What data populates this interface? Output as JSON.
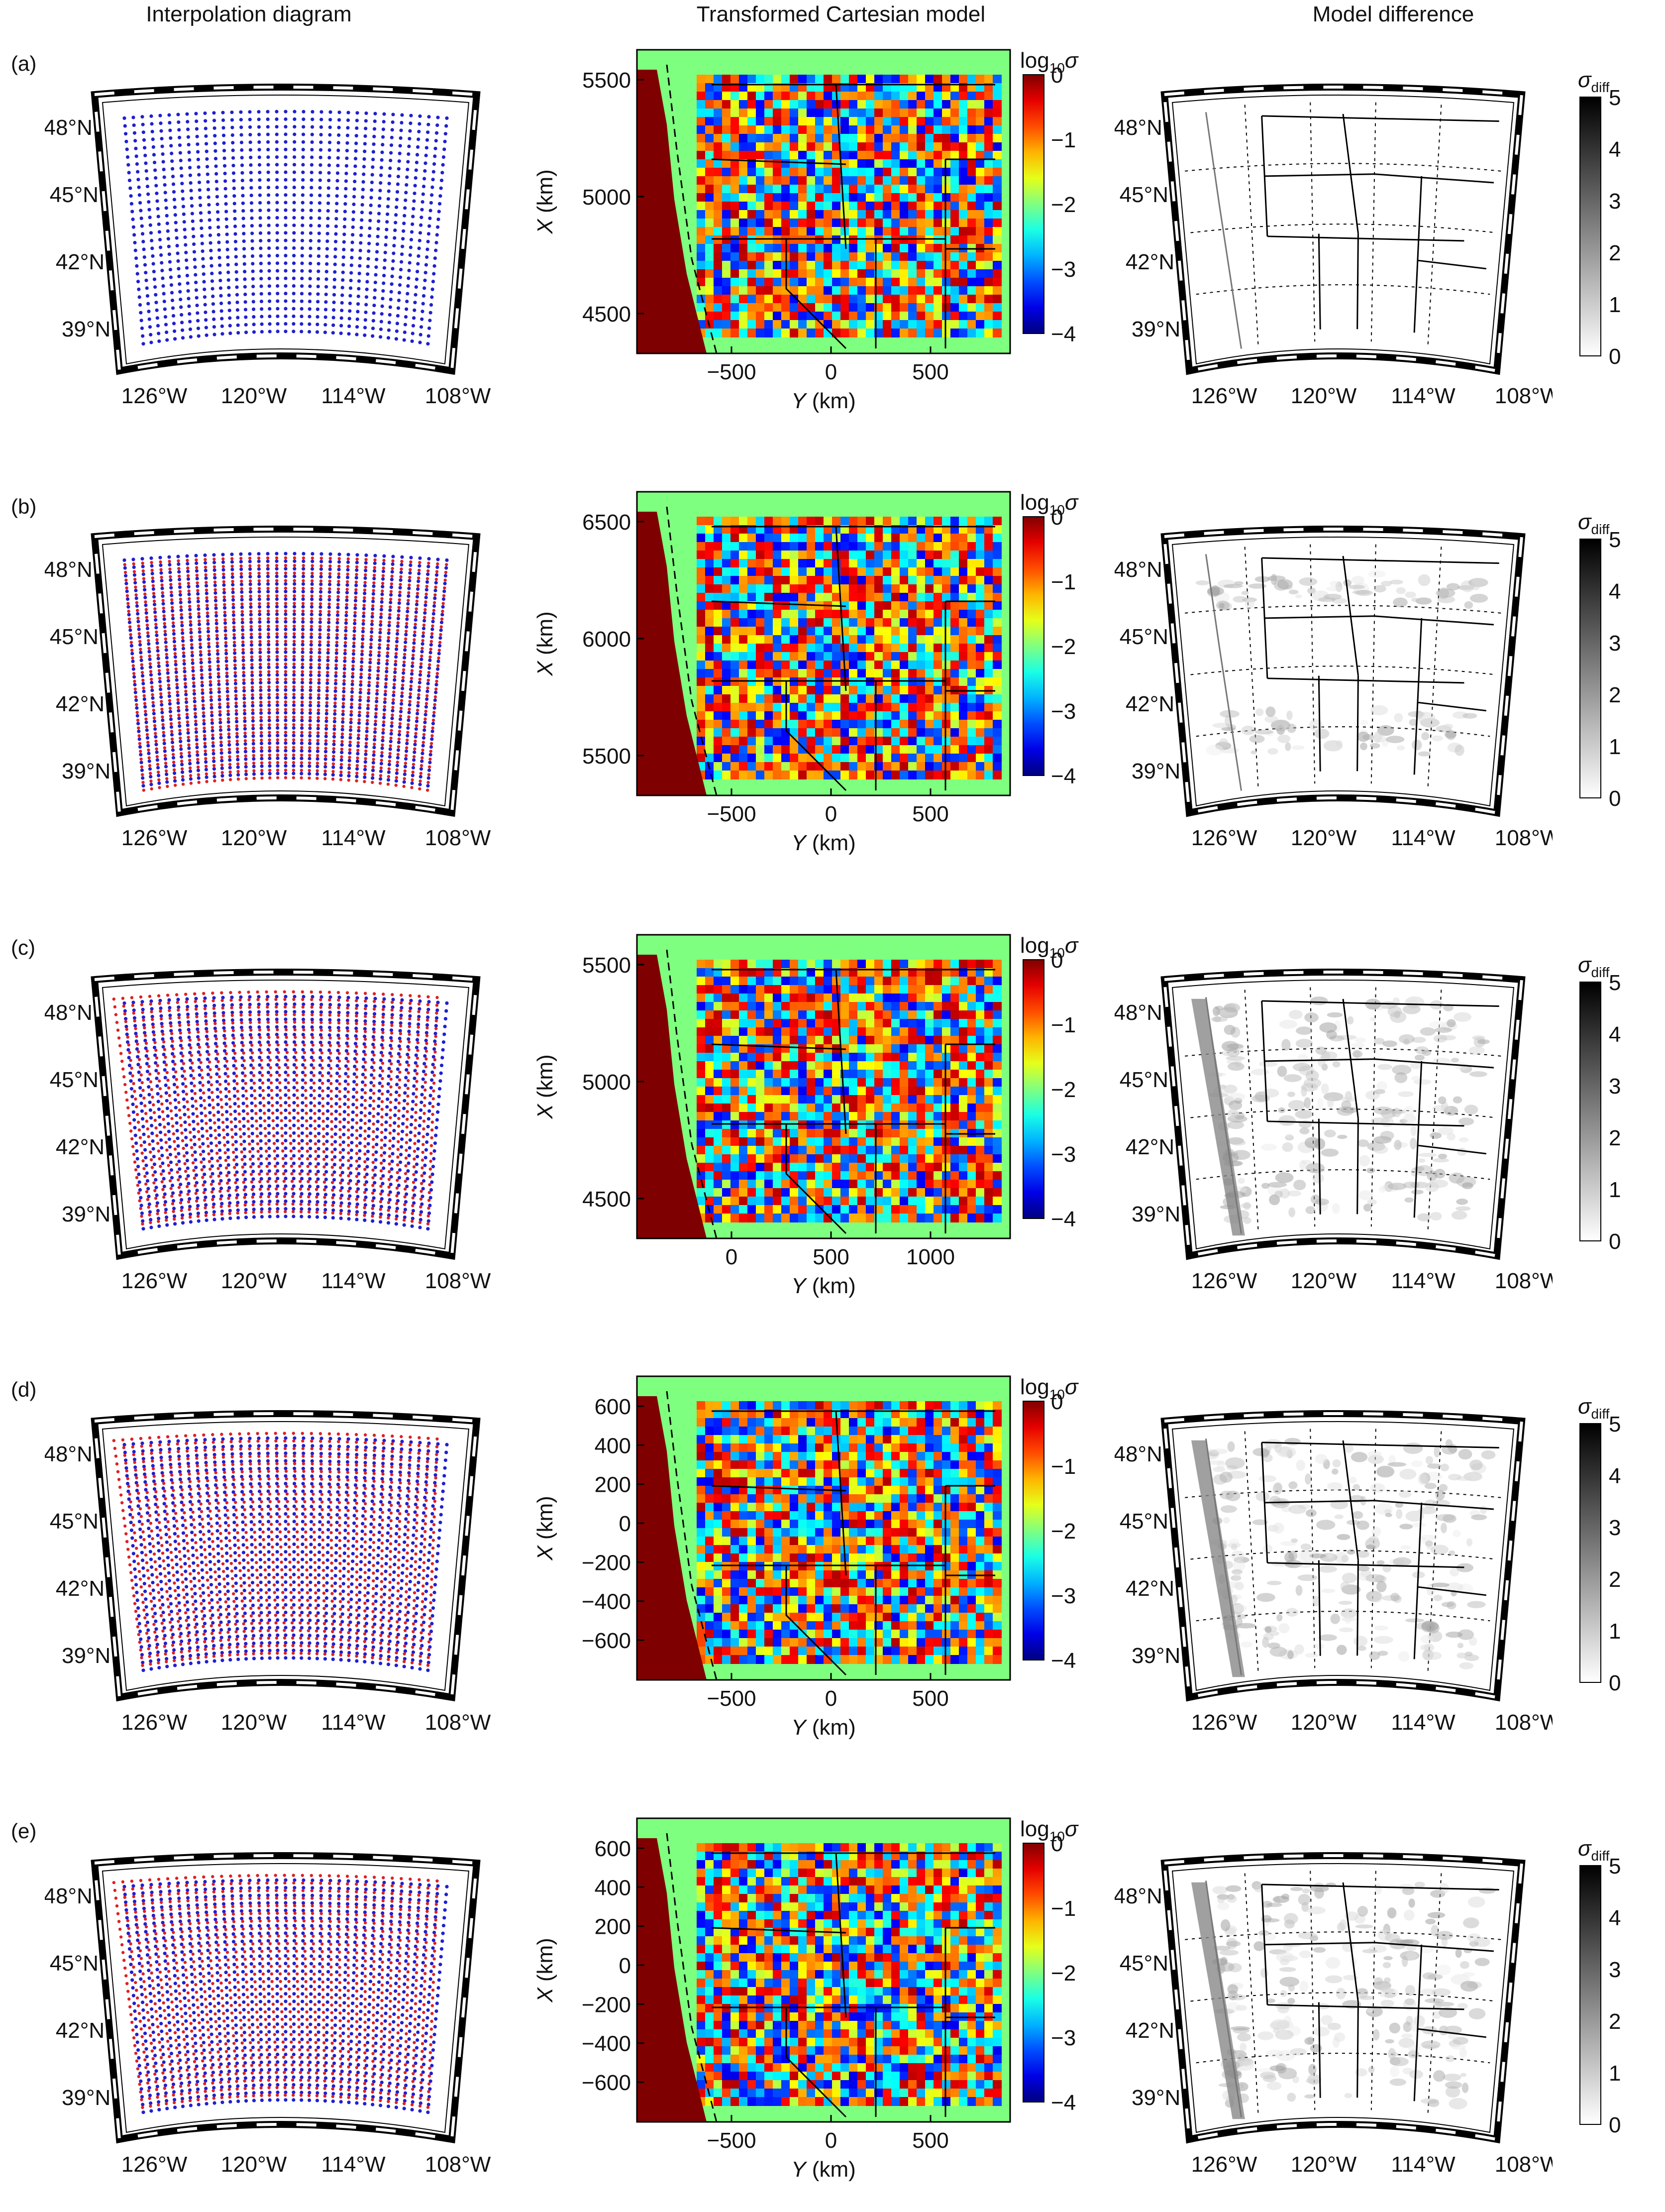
{
  "columns": [
    {
      "title": "Interpolation diagram"
    },
    {
      "title": "Transformed Cartesian model"
    },
    {
      "title": "Model difference"
    }
  ],
  "map_axes": {
    "lat_labels": [
      "48°N",
      "45°N",
      "42°N",
      "39°N"
    ],
    "lon_labels": [
      "126°W",
      "120°W",
      "114°W",
      "108°W"
    ]
  },
  "colorbars": {
    "conductivity": {
      "label_main": "log",
      "label_sub": "10",
      "label_sym": "σ",
      "ticks": [
        "0",
        "−1",
        "−2",
        "−3",
        "−4"
      ]
    },
    "difference": {
      "label_sym": "σ",
      "label_sub": "diff",
      "ticks": [
        "5",
        "4",
        "3",
        "2",
        "1",
        "0"
      ]
    }
  },
  "colors": {
    "grid_primary": "#2020d0",
    "grid_secondary": "#e02020",
    "ocean_conductive": "#7f0000",
    "background_model": "#7fff7f"
  },
  "rows": [
    {
      "label": "(a)",
      "model": {
        "ylabel_var": "X",
        "ylabel_unit": " (km)",
        "xlabel_var": "Y",
        "xlabel_unit": " (km)",
        "yticks": [
          "5500",
          "5000",
          "4500"
        ],
        "xticks": [
          "−500",
          "0",
          "500"
        ]
      }
    },
    {
      "label": "(b)",
      "model": {
        "ylabel_var": "X",
        "ylabel_unit": " (km)",
        "xlabel_var": "Y",
        "xlabel_unit": " (km)",
        "yticks": [
          "6500",
          "6000",
          "5500"
        ],
        "xticks": [
          "−500",
          "0",
          "500"
        ]
      }
    },
    {
      "label": "(c)",
      "model": {
        "ylabel_var": "X",
        "ylabel_unit": " (km)",
        "xlabel_var": "Y",
        "xlabel_unit": " (km)",
        "yticks": [
          "5500",
          "5000",
          "4500"
        ],
        "xticks": [
          "0",
          "500",
          "1000"
        ]
      }
    },
    {
      "label": "(d)",
      "model": {
        "ylabel_var": "X",
        "ylabel_unit": " (km)",
        "xlabel_var": "Y",
        "xlabel_unit": " (km)",
        "yticks": [
          "600",
          "400",
          "200",
          "0",
          "−200",
          "−400",
          "−600"
        ],
        "xticks": [
          "−500",
          "0",
          "500"
        ]
      }
    },
    {
      "label": "(e)",
      "model": {
        "ylabel_var": "X",
        "ylabel_unit": " (km)",
        "xlabel_var": "Y",
        "xlabel_unit": " (km)",
        "yticks": [
          "600",
          "400",
          "200",
          "0",
          "−200",
          "−400",
          "−600"
        ],
        "xticks": [
          "−500",
          "0",
          "500"
        ]
      }
    }
  ]
}
